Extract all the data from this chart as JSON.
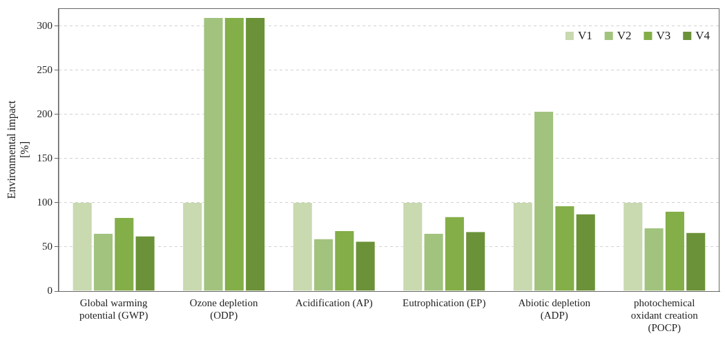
{
  "chart_data": {
    "type": "bar",
    "ylabel": "Environmental impact [%]",
    "categories": [
      "Global warming potential (GWP)",
      "Ozone depletion (ODP)",
      "Acidification (AP)",
      "Eutrophication (EP)",
      "Abiotic depletion (ADP)",
      "photochemical oxidant creation (POCP)"
    ],
    "series": [
      {
        "name": "V1",
        "color": "#c9d9b0",
        "values": [
          100,
          100,
          100,
          100,
          100,
          100
        ]
      },
      {
        "name": "V2",
        "color": "#a1c37e",
        "values": [
          65,
          309,
          59,
          65,
          203,
          71
        ]
      },
      {
        "name": "V3",
        "color": "#83ae48",
        "values": [
          83,
          309,
          68,
          84,
          96,
          90
        ]
      },
      {
        "name": "V4",
        "color": "#6b9238",
        "values": [
          62,
          309,
          56,
          67,
          87,
          66
        ]
      }
    ],
    "ylim": [
      0,
      320
    ],
    "yticks": [
      0,
      50,
      100,
      150,
      200,
      250,
      300
    ],
    "grid": "y",
    "legend": "top right"
  }
}
